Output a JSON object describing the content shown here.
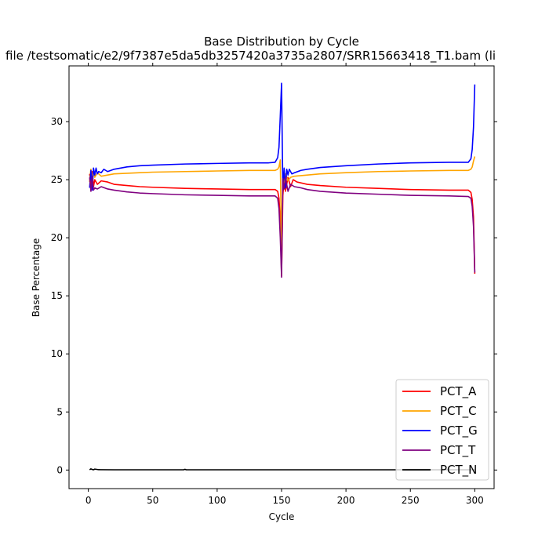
{
  "chart_data": {
    "type": "line",
    "title": "Base Distribution by Cycle",
    "subtitle": "file /testsomatic/e2/9f7387e5da5db3257420a3735a2807/SRR15663418_T1.bam (li",
    "xlabel": "Cycle",
    "ylabel": "Base Percentage",
    "xlim": [
      -15,
      315
    ],
    "ylim": [
      -1.6,
      34.8
    ],
    "xticks": [
      0,
      50,
      100,
      150,
      200,
      250,
      300
    ],
    "yticks": [
      0,
      5,
      10,
      15,
      20,
      25,
      30
    ],
    "grid": false,
    "legend_position": "lower-right",
    "series": [
      {
        "name": "PCT_A",
        "color": "#ff0000",
        "points": [
          [
            1,
            25.5
          ],
          [
            2,
            24.6
          ],
          [
            3,
            25.7
          ],
          [
            4,
            24.4
          ],
          [
            5,
            25.0
          ],
          [
            7,
            24.6
          ],
          [
            10,
            24.9
          ],
          [
            15,
            24.8
          ],
          [
            20,
            24.6
          ],
          [
            30,
            24.5
          ],
          [
            40,
            24.4
          ],
          [
            50,
            24.35
          ],
          [
            75,
            24.25
          ],
          [
            100,
            24.2
          ],
          [
            125,
            24.15
          ],
          [
            140,
            24.15
          ],
          [
            145,
            24.15
          ],
          [
            147,
            24.0
          ],
          [
            148,
            23.4
          ],
          [
            149,
            21.5
          ],
          [
            150,
            16.7
          ],
          [
            151,
            23.6
          ],
          [
            152,
            25.0
          ],
          [
            153,
            24.0
          ],
          [
            155,
            25.2
          ],
          [
            157,
            24.4
          ],
          [
            159,
            25.0
          ],
          [
            162,
            24.8
          ],
          [
            170,
            24.6
          ],
          [
            180,
            24.5
          ],
          [
            200,
            24.35
          ],
          [
            225,
            24.25
          ],
          [
            250,
            24.15
          ],
          [
            280,
            24.1
          ],
          [
            295,
            24.1
          ],
          [
            297,
            23.9
          ],
          [
            298,
            23.3
          ],
          [
            299,
            21.8
          ],
          [
            300,
            16.9
          ]
        ]
      },
      {
        "name": "PCT_C",
        "color": "#ffa500",
        "points": [
          [
            1,
            24.8
          ],
          [
            2,
            25.9
          ],
          [
            3,
            25.0
          ],
          [
            4,
            25.8
          ],
          [
            5,
            25.2
          ],
          [
            7,
            25.6
          ],
          [
            10,
            25.3
          ],
          [
            15,
            25.4
          ],
          [
            20,
            25.5
          ],
          [
            30,
            25.55
          ],
          [
            40,
            25.6
          ],
          [
            50,
            25.65
          ],
          [
            75,
            25.7
          ],
          [
            100,
            25.75
          ],
          [
            125,
            25.8
          ],
          [
            140,
            25.8
          ],
          [
            145,
            25.8
          ],
          [
            147,
            25.9
          ],
          [
            148,
            26.1
          ],
          [
            149,
            26.7
          ],
          [
            150,
            18.5
          ],
          [
            151,
            25.3
          ],
          [
            152,
            24.7
          ],
          [
            153,
            25.5
          ],
          [
            155,
            24.9
          ],
          [
            157,
            25.2
          ],
          [
            160,
            25.3
          ],
          [
            170,
            25.4
          ],
          [
            180,
            25.5
          ],
          [
            200,
            25.6
          ],
          [
            225,
            25.7
          ],
          [
            250,
            25.75
          ],
          [
            280,
            25.8
          ],
          [
            295,
            25.8
          ],
          [
            297,
            25.9
          ],
          [
            298,
            26.1
          ],
          [
            299,
            26.6
          ],
          [
            300,
            27.0
          ]
        ]
      },
      {
        "name": "PCT_G",
        "color": "#0000ff",
        "points": [
          [
            1,
            24.3
          ],
          [
            2,
            25.8
          ],
          [
            3,
            24.1
          ],
          [
            4,
            26.0
          ],
          [
            5,
            25.4
          ],
          [
            6,
            26.0
          ],
          [
            7,
            25.5
          ],
          [
            8,
            25.7
          ],
          [
            10,
            25.6
          ],
          [
            12,
            25.9
          ],
          [
            15,
            25.7
          ],
          [
            20,
            25.9
          ],
          [
            30,
            26.1
          ],
          [
            40,
            26.2
          ],
          [
            50,
            26.25
          ],
          [
            75,
            26.35
          ],
          [
            100,
            26.4
          ],
          [
            125,
            26.45
          ],
          [
            140,
            26.45
          ],
          [
            145,
            26.5
          ],
          [
            147,
            26.9
          ],
          [
            148,
            27.8
          ],
          [
            149,
            30.5
          ],
          [
            150,
            33.3
          ],
          [
            151,
            24.1
          ],
          [
            152,
            26.0
          ],
          [
            153,
            24.3
          ],
          [
            154,
            25.9
          ],
          [
            155,
            25.4
          ],
          [
            156,
            25.9
          ],
          [
            158,
            25.5
          ],
          [
            160,
            25.6
          ],
          [
            165,
            25.8
          ],
          [
            170,
            25.9
          ],
          [
            180,
            26.05
          ],
          [
            200,
            26.2
          ],
          [
            225,
            26.35
          ],
          [
            250,
            26.45
          ],
          [
            280,
            26.5
          ],
          [
            295,
            26.5
          ],
          [
            297,
            26.8
          ],
          [
            298,
            27.6
          ],
          [
            299,
            29.5
          ],
          [
            300,
            33.2
          ]
        ]
      },
      {
        "name": "PCT_T",
        "color": "#800080",
        "points": [
          [
            1,
            25.2
          ],
          [
            2,
            24.0
          ],
          [
            3,
            25.3
          ],
          [
            4,
            24.1
          ],
          [
            5,
            24.3
          ],
          [
            7,
            24.2
          ],
          [
            10,
            24.4
          ],
          [
            15,
            24.2
          ],
          [
            20,
            24.1
          ],
          [
            30,
            23.95
          ],
          [
            40,
            23.85
          ],
          [
            50,
            23.8
          ],
          [
            75,
            23.7
          ],
          [
            100,
            23.65
          ],
          [
            125,
            23.6
          ],
          [
            140,
            23.6
          ],
          [
            145,
            23.6
          ],
          [
            147,
            23.4
          ],
          [
            148,
            22.5
          ],
          [
            149,
            20.0
          ],
          [
            150,
            16.6
          ],
          [
            151,
            25.1
          ],
          [
            152,
            24.2
          ],
          [
            153,
            25.2
          ],
          [
            155,
            24.0
          ],
          [
            157,
            24.6
          ],
          [
            160,
            24.4
          ],
          [
            165,
            24.3
          ],
          [
            170,
            24.15
          ],
          [
            180,
            24.0
          ],
          [
            200,
            23.85
          ],
          [
            225,
            23.75
          ],
          [
            250,
            23.65
          ],
          [
            280,
            23.6
          ],
          [
            295,
            23.55
          ],
          [
            297,
            23.4
          ],
          [
            298,
            22.7
          ],
          [
            299,
            21.0
          ],
          [
            300,
            17.0
          ]
        ]
      },
      {
        "name": "PCT_N",
        "color": "#000000",
        "points": [
          [
            1,
            0.02
          ],
          [
            2,
            0.1
          ],
          [
            3,
            0.05
          ],
          [
            4,
            0.02
          ],
          [
            5,
            0.08
          ],
          [
            8,
            0.03
          ],
          [
            20,
            0.02
          ],
          [
            74,
            0.02
          ],
          [
            75,
            0.06
          ],
          [
            76,
            0.02
          ],
          [
            100,
            0.02
          ],
          [
            150,
            0.02
          ],
          [
            200,
            0.02
          ],
          [
            250,
            0.02
          ],
          [
            300,
            0.02
          ]
        ]
      }
    ]
  }
}
